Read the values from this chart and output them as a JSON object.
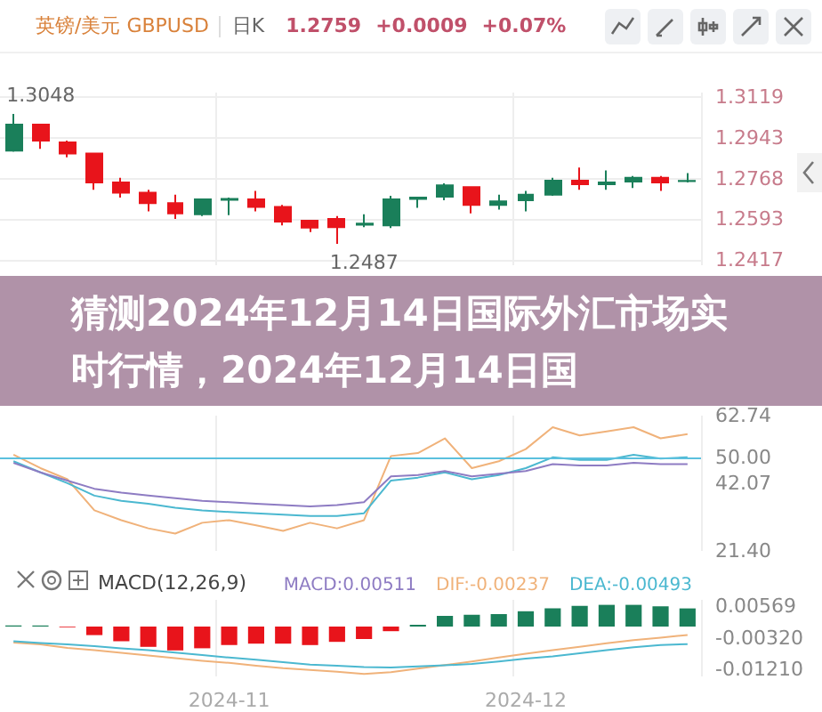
{
  "chart_data": [
    {
      "type": "candlestick",
      "title": "猜测2024年12月14日国际外汇市场实时行情，2024年12月14日国",
      "subtitle": "英镑/美元 GBPUSD",
      "annotations": [
        "日K",
        "1.2759",
        "+0.0009",
        "+0.07%",
        "1.3048",
        "1.2487"
      ],
      "categories": [
        null,
        null,
        null,
        null,
        null,
        null,
        null,
        null,
        "2024-11",
        null,
        null,
        null,
        null,
        null,
        null,
        null,
        null,
        null,
        null,
        "2024-12",
        null,
        null,
        null,
        null,
        null,
        null
      ],
      "ohlc": [
        [
          1.2889,
          1.3048,
          1.2885,
          1.3002
        ],
        [
          1.3002,
          1.3006,
          1.2897,
          1.2933
        ],
        [
          1.2925,
          1.2933,
          1.2861,
          1.2877
        ],
        [
          1.2877,
          1.2881,
          1.272,
          1.2752
        ],
        [
          1.2752,
          1.2772,
          1.2687,
          1.2708
        ],
        [
          1.2708,
          1.272,
          1.2627,
          1.2663
        ],
        [
          1.2663,
          1.2699,
          1.2595,
          1.2619
        ],
        [
          1.2615,
          1.2683,
          1.2607,
          1.2679
        ],
        [
          1.2677,
          1.2687,
          1.2611,
          1.2681
        ],
        [
          1.2679,
          1.2716,
          1.2627,
          1.2647
        ],
        [
          1.2647,
          1.2655,
          1.2567,
          1.2583
        ],
        [
          1.2587,
          1.2591,
          1.2538,
          1.2557
        ],
        [
          1.2595,
          1.2607,
          1.2487,
          1.2559
        ],
        [
          1.257,
          1.2615,
          1.2559,
          1.2575
        ],
        [
          1.2567,
          1.2695,
          1.2555,
          1.2679
        ],
        [
          1.2681,
          1.2691,
          1.2643,
          1.2687
        ],
        [
          1.2691,
          1.2748,
          1.2675,
          1.274
        ],
        [
          1.2732,
          1.2736,
          1.2619,
          1.2655
        ],
        [
          1.2655,
          1.2699,
          1.2635,
          1.2671
        ],
        [
          1.2675,
          1.2716,
          1.2627,
          1.2699
        ],
        [
          1.2699,
          1.2772,
          1.2695,
          1.276
        ],
        [
          1.276,
          1.2816,
          1.272,
          1.2744
        ],
        [
          1.2744,
          1.2804,
          1.272,
          1.2752
        ],
        [
          1.2756,
          1.278,
          1.2728,
          1.2772
        ],
        [
          1.2772,
          1.278,
          1.2716,
          1.2752
        ],
        [
          1.2758,
          1.2792,
          1.2752,
          1.2759
        ]
      ],
      "colors": [
        "#1a7f5a",
        "#e8141b",
        "#e8141b",
        "#e8141b",
        "#e8141b",
        "#e8141b",
        "#e8141b",
        "#1a7f5a",
        "#1a7f5a",
        "#e8141b",
        "#e8141b",
        "#e8141b",
        "#e8141b",
        "#1a7f5a",
        "#1a7f5a",
        "#1a7f5a",
        "#1a7f5a",
        "#e8141b",
        "#1a7f5a",
        "#1a7f5a",
        "#1a7f5a",
        "#e8141b",
        "#1a7f5a",
        "#1a7f5a",
        "#e8141b",
        "#1a7f5a"
      ],
      "ylim": [
        1.2395,
        1.314
      ],
      "yticks": [
        1.3119,
        1.2943,
        1.2768,
        1.2593,
        1.2417
      ],
      "grid": true,
      "tick_labels": "y"
    },
    {
      "type": "line",
      "categories": [
        null,
        null,
        null,
        null,
        null,
        null,
        null,
        null,
        "2024-11",
        null,
        null,
        null,
        null,
        null,
        null,
        null,
        null,
        null,
        null,
        "2024-12",
        null,
        null,
        null,
        null,
        null,
        null
      ],
      "series": [
        {
          "color": "#f0b27a",
          "values": [
            50.8,
            46.7,
            43.3,
            33.8,
            30.8,
            28.3,
            26.7,
            30.0,
            30.8,
            29.2,
            27.5,
            30.0,
            28.3,
            30.8,
            50.4,
            51.3,
            55.8,
            46.7,
            48.8,
            52.5,
            59.2,
            56.7,
            57.9,
            59.2,
            55.8,
            57.1
          ]
        },
        {
          "color": "#4bb8d0",
          "values": [
            48.8,
            45.4,
            42.1,
            38.3,
            36.7,
            35.8,
            34.6,
            33.8,
            33.3,
            32.9,
            32.5,
            32.1,
            32.1,
            32.9,
            42.9,
            43.8,
            45.4,
            43.3,
            44.6,
            46.7,
            50.0,
            49.2,
            49.2,
            50.8,
            49.6,
            50.0
          ]
        },
        {
          "color": "#8e7cc3",
          "values": [
            48.3,
            45.4,
            42.9,
            40.4,
            39.2,
            38.3,
            37.5,
            36.7,
            36.3,
            35.8,
            35.4,
            35.0,
            35.4,
            36.3,
            44.2,
            44.6,
            45.8,
            44.2,
            45.0,
            45.8,
            47.9,
            47.5,
            47.5,
            48.3,
            47.9,
            47.9
          ]
        }
      ],
      "ref_lines": [
        {
          "axis": "y",
          "value": 50,
          "color": "#5bc0de"
        }
      ],
      "ylim": [
        21.4,
        62.74
      ],
      "yticks": [
        {
          "value": 62.74,
          "label": "62.74"
        },
        {
          "value": 50,
          "label": "50.00"
        },
        {
          "value": 42.07,
          "label": "42.07"
        },
        {
          "value": 21.4,
          "label": "21.40"
        }
      ],
      "grid": "x",
      "tick_labels": "y",
      "marker": "none"
    },
    {
      "type": "bar",
      "title": "MACD(12,26,9)",
      "categories": [
        null,
        null,
        null,
        null,
        null,
        null,
        null,
        null,
        "2024-11",
        null,
        null,
        null,
        null,
        null,
        null,
        null,
        null,
        null,
        null,
        "2024-12",
        null,
        null,
        null,
        null,
        null,
        null
      ],
      "series": [
        {
          "name": "MACD:0.00511",
          "color": "#8e7cc3",
          "colors": [
            "#1a7f5a",
            "#1a7f5a",
            "#e8141b",
            "#e8141b",
            "#e8141b",
            "#e8141b",
            "#e8141b",
            "#e8141b",
            "#e8141b",
            "#e8141b",
            "#e8141b",
            "#e8141b",
            "#e8141b",
            "#e8141b",
            "#e8141b",
            "#1a7f5a",
            "#1a7f5a",
            "#1a7f5a",
            "#1a7f5a",
            "#1a7f5a",
            "#1a7f5a",
            "#1a7f5a",
            "#1a7f5a",
            "#1a7f5a",
            "#1a7f5a",
            "#1a7f5a"
          ],
          "values": [
            0.0003,
            0.0003,
            -0.0002,
            -0.0024,
            -0.0041,
            -0.0057,
            -0.0067,
            -0.0061,
            -0.0052,
            -0.0048,
            -0.0048,
            -0.0052,
            -0.0043,
            -0.0035,
            -0.0013,
            0.0005,
            0.003,
            0.0033,
            0.0035,
            0.0043,
            0.0051,
            0.0058,
            0.0061,
            0.0061,
            0.0057,
            0.0051
          ]
        },
        {
          "name": "DIF:-0.00237",
          "type": "line",
          "color": "#f0b27a",
          "values": [
            -0.0045,
            -0.005,
            -0.006,
            -0.0066,
            -0.0074,
            -0.0081,
            -0.0089,
            -0.0096,
            -0.0102,
            -0.011,
            -0.0117,
            -0.0122,
            -0.0127,
            -0.0133,
            -0.0128,
            -0.0118,
            -0.0108,
            -0.0098,
            -0.0087,
            -0.0076,
            -0.0066,
            -0.0057,
            -0.0047,
            -0.0038,
            -0.0031,
            -0.00237
          ]
        },
        {
          "name": "DEA:-0.00493",
          "type": "line",
          "color": "#4bb8d0",
          "values": [
            -0.0041,
            -0.0046,
            -0.005,
            -0.0055,
            -0.0061,
            -0.0066,
            -0.0073,
            -0.008,
            -0.0087,
            -0.0093,
            -0.01,
            -0.0107,
            -0.011,
            -0.0114,
            -0.0115,
            -0.0112,
            -0.0109,
            -0.0105,
            -0.0098,
            -0.009,
            -0.0084,
            -0.0075,
            -0.0066,
            -0.0058,
            -0.0052,
            -0.00493
          ]
        }
      ],
      "ylim": [
        -0.014,
        0.0075
      ],
      "yticks": [
        {
          "value": 0.00569,
          "label": "0.00569"
        },
        {
          "value": -0.0032,
          "label": "-0.00320"
        },
        {
          "value": -0.0121,
          "label": "-0.01210"
        }
      ],
      "grid": "x",
      "legend": "top right",
      "marker": "none"
    }
  ]
}
